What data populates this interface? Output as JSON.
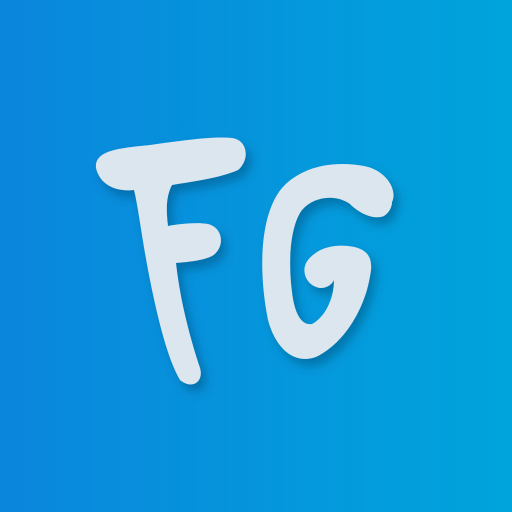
{
  "app_icon": {
    "monogram": "FG",
    "icon_name": "fg-monogram-logo-icon",
    "colors": {
      "background_left": "#0a86dc",
      "background_right": "#00a4dc",
      "letter_fill": "#dce6ef",
      "shadow": "#08476f"
    }
  }
}
